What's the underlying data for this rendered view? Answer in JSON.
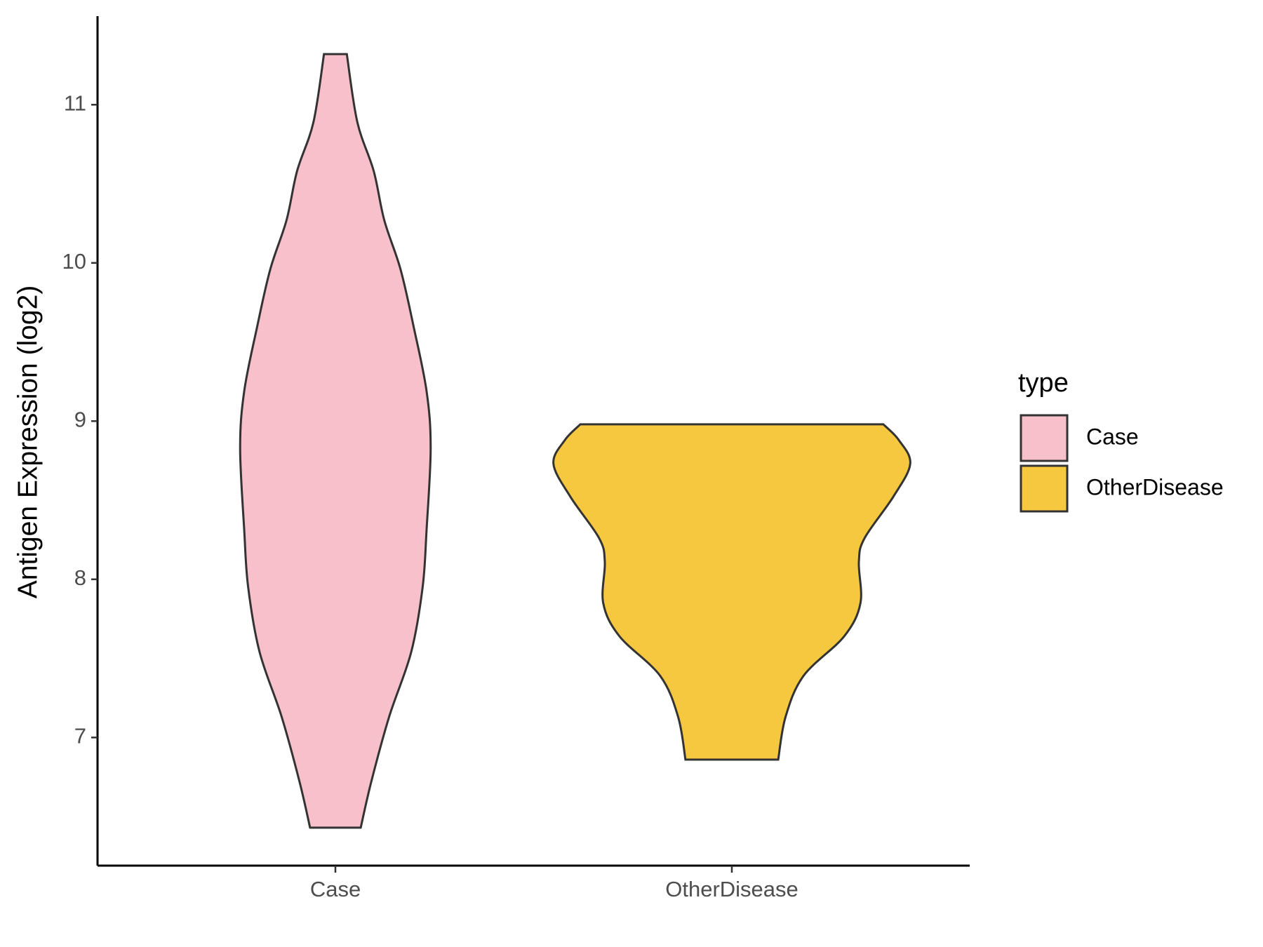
{
  "chart_data": {
    "type": "violin",
    "y_label": "Antigen Expression (log2)",
    "categories": [
      "Case",
      "OtherDisease"
    ],
    "legend_title": "type",
    "legend_position": "right",
    "ylim": [
      6.19,
      11.56
    ],
    "yticks": [
      7,
      8,
      9,
      10,
      11
    ],
    "series": [
      {
        "name": "Case",
        "color": "#f7c0cb",
        "values": [
          11.32,
          10.89,
          10.58,
          10.27,
          9.96,
          9.6,
          9.19,
          8.83,
          8.31,
          7.95,
          7.54,
          7.13,
          6.72,
          6.43
        ],
        "density": [
          0.064,
          0.123,
          0.215,
          0.274,
          0.365,
          0.438,
          0.511,
          0.534,
          0.511,
          0.489,
          0.425,
          0.301,
          0.201,
          0.142
        ]
      },
      {
        "name": "OtherDisease",
        "color": "#f5c83f",
        "values": [
          8.98,
          8.88,
          8.73,
          8.52,
          8.26,
          8.11,
          7.85,
          7.64,
          7.39,
          7.13,
          6.86
        ],
        "density": [
          0.849,
          0.936,
          1.0,
          0.904,
          0.744,
          0.712,
          0.721,
          0.63,
          0.402,
          0.301,
          0.26
        ]
      }
    ]
  }
}
